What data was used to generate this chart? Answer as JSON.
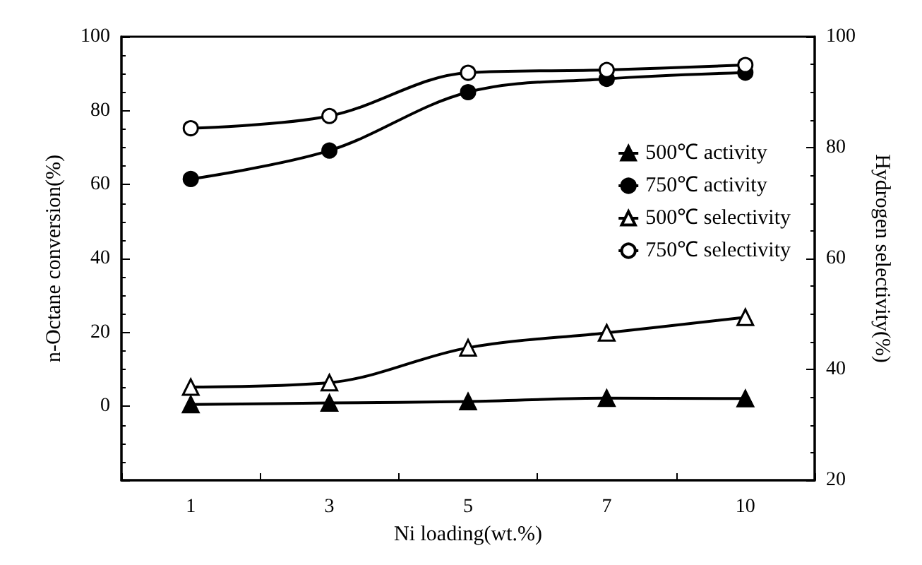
{
  "chart_data": {
    "type": "line",
    "xlabel": "Ni loading(wt.%)",
    "ylabel": "n-Octane conversion(%)",
    "y2label": "Hydrogen selectivity(%)",
    "categories": [
      "1",
      "3",
      "5",
      "7",
      "10"
    ],
    "series": [
      {
        "name": "500℃ activity",
        "color": "#000000",
        "marker": "triangle",
        "values": [
          0.5,
          0.9,
          1.3,
          2.2,
          2.1
        ]
      },
      {
        "name": "750℃ activity",
        "color": "#000000",
        "marker": "circle",
        "values": [
          61.5,
          69.2,
          85,
          88.6,
          90.3
        ]
      },
      {
        "name": "500℃ selectivity",
        "color": "#000000",
        "marker": "triangle",
        "axis": "y2",
        "values": [
          36.8,
          37.6,
          43.9,
          46.6,
          49.4
        ]
      },
      {
        "name": "750℃ selectivity",
        "color": "#000000",
        "marker": "circle",
        "axis": "y2",
        "values": [
          83.5,
          85.7,
          93.5,
          94,
          94.9
        ]
      }
    ],
    "ylim": [
      -20,
      100
    ],
    "yticks": [
      {
        "value": -20,
        "label": null
      },
      0,
      20,
      40,
      60,
      80,
      100
    ],
    "y2lim": [
      20,
      100
    ],
    "y2ticks": [
      20,
      40,
      60,
      80,
      100
    ],
    "grid": false,
    "legend": "right",
    "line_style": "solid"
  }
}
